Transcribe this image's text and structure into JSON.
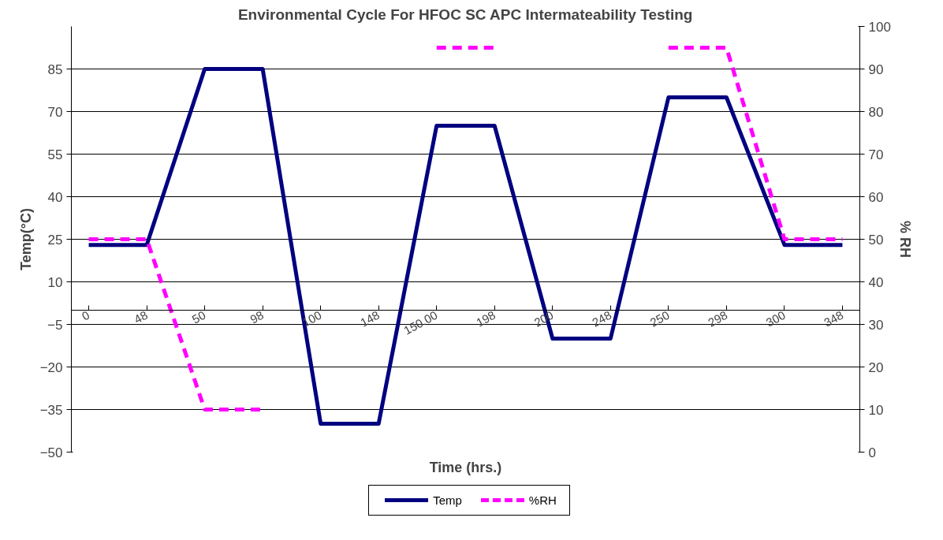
{
  "chart_data": {
    "type": "line",
    "title": "Environmental Cycle For HFOC SC APC Intermateability Testing",
    "xlabel": "Time (hrs.)",
    "ylabel": "Temp(°C)",
    "y2label": "% RH",
    "categories": [
      "0",
      "48",
      "50",
      "98",
      "100",
      "148",
      "150.00",
      "198",
      "200",
      "248",
      "250",
      "298",
      "300",
      "348"
    ],
    "series": [
      {
        "name": "Temp",
        "color": "#000080",
        "values": [
          23,
          23,
          85,
          85,
          -40,
          -40,
          65,
          65,
          -10,
          -10,
          75,
          75,
          23,
          23
        ],
        "line_style": "solid"
      },
      {
        "name": "%RH",
        "color": "#ff00ff",
        "values": [
          50,
          50,
          10,
          10,
          null,
          null,
          95,
          95,
          null,
          null,
          95,
          95,
          50,
          50
        ],
        "axis": "y2",
        "line_style": "dashed"
      }
    ],
    "ylim": [
      -50,
      100
    ],
    "yticks": [
      -50,
      -35,
      -20,
      -5,
      10,
      25,
      40,
      55,
      70,
      85
    ],
    "y2lim": [
      0,
      100
    ],
    "y2ticks": [
      0,
      10,
      20,
      30,
      40,
      50,
      60,
      70,
      80,
      90,
      100
    ],
    "grid": "y",
    "legend": "bottom",
    "marker": "none"
  }
}
